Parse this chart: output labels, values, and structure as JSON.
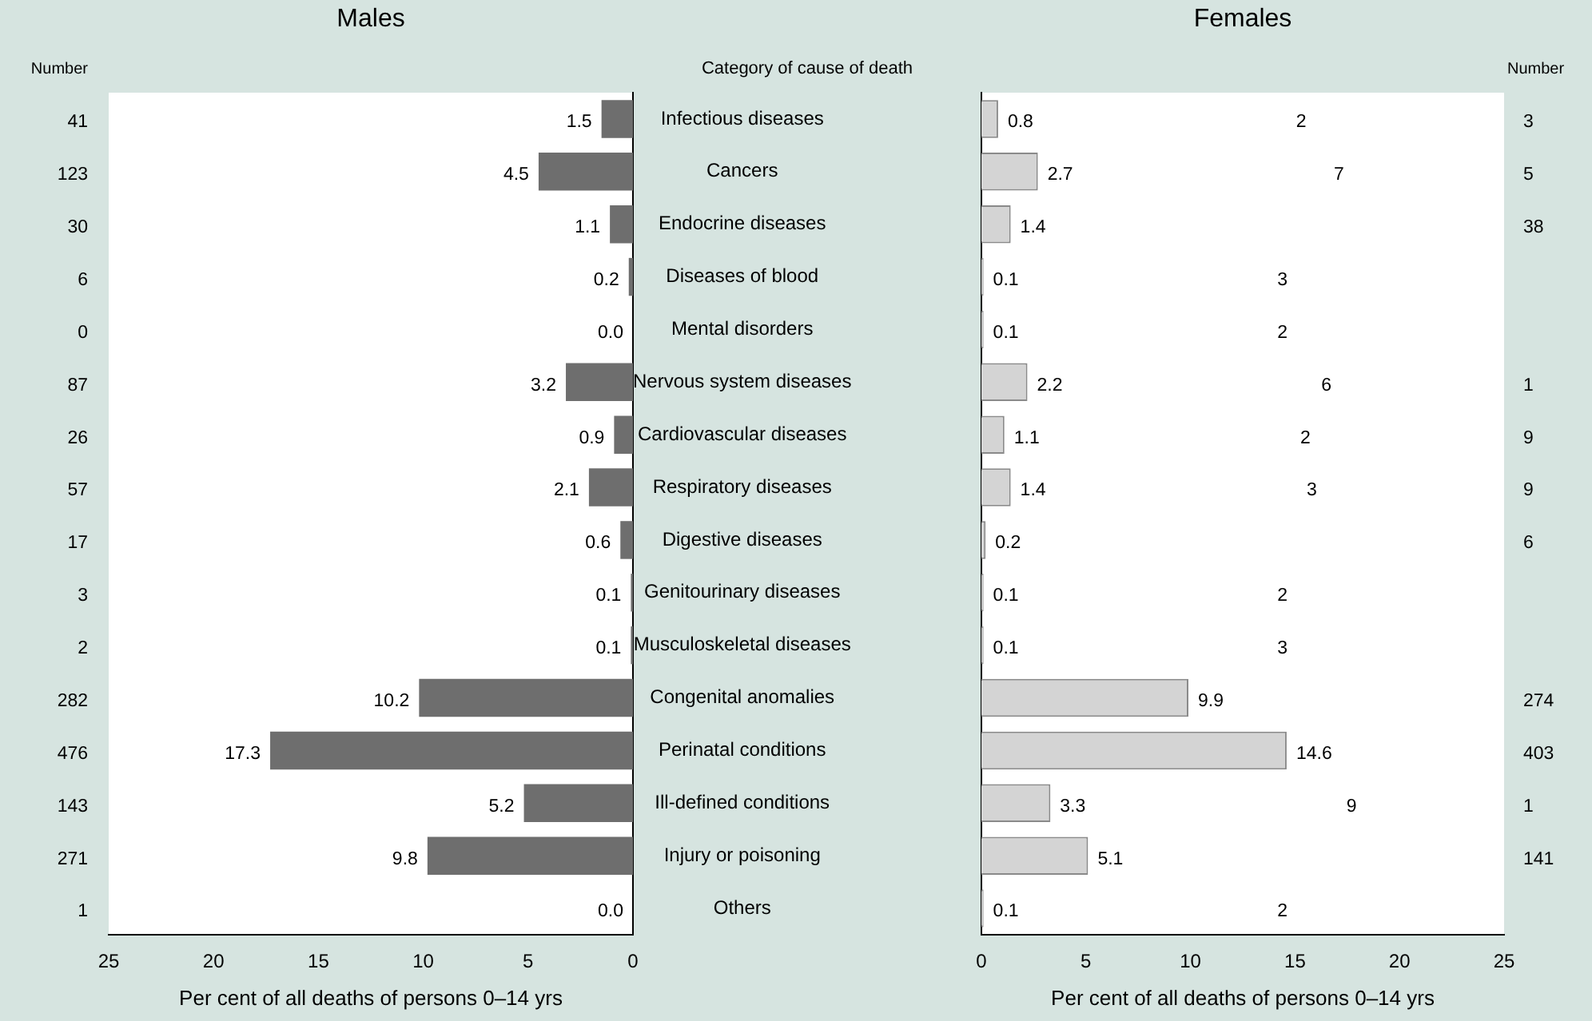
{
  "chart_data": [
    {
      "type": "bar",
      "orientation": "horizontal",
      "title": "Males",
      "xlabel": "Per cent of all deaths of persons 0–14 yrs",
      "categories": [
        "Infectious diseases",
        "Cancers",
        "Endocrine diseases",
        "Diseases of blood",
        "Mental disorders",
        "Nervous system diseases",
        "Cardiovascular diseases",
        "Respiratory diseases",
        "Digestive diseases",
        "Genitourinary diseases",
        "Musculoskeletal diseases",
        "Congenital anomalies",
        "Perinatal conditions",
        "Ill-defined conditions",
        "Injury or poisoning",
        "Others"
      ],
      "values": [
        1.5,
        4.5,
        1.1,
        0.2,
        0.0,
        3.2,
        0.9,
        2.1,
        0.6,
        0.1,
        0.1,
        10.2,
        17.3,
        5.2,
        9.8,
        0.0
      ],
      "value_labels": [
        "1.5",
        "4.5",
        "1.1",
        "0.2",
        "0.0",
        "3.2",
        "0.9",
        "2.1",
        "0.6",
        "0.1",
        "0.1",
        "10.2",
        "17.3",
        "5.2",
        "9.8",
        "0.0"
      ],
      "color": "#6e6e6e",
      "xlim": [
        25,
        0
      ],
      "xticks": [
        25,
        20,
        15,
        10,
        5,
        0
      ],
      "grid": false,
      "annotations": [
        "Number",
        "Category of cause of death",
        "41",
        "123",
        "30",
        "6",
        "0",
        "87",
        "26",
        "57",
        "17",
        "3",
        "2",
        "282",
        "476",
        "143",
        "271",
        "1"
      ]
    },
    {
      "type": "bar",
      "orientation": "horizontal",
      "title": "Females",
      "xlabel": "Per cent of all deaths of persons 0–14 yrs",
      "tick_labels": "x",
      "categories": [
        null,
        null,
        null,
        null,
        null,
        null,
        null,
        null,
        null,
        null,
        null,
        null,
        null,
        null,
        null,
        null
      ],
      "values": [
        0.8,
        2.7,
        1.4,
        0.1,
        0.1,
        2.2,
        1.1,
        1.4,
        0.2,
        0.1,
        0.1,
        9.9,
        14.6,
        3.3,
        5.1,
        0.1
      ],
      "value_labels": [
        "0.8",
        "2.7",
        "1.4",
        "0.1",
        "0.1",
        "2.2",
        "1.1",
        "1.4",
        "0.2",
        "0.1",
        "0.1",
        "9.9",
        "14.6",
        "3.3",
        "5.1",
        "0.1"
      ],
      "color": "#d4d4d4",
      "xlim": [
        0,
        25
      ],
      "xticks": [
        0,
        5,
        10,
        15,
        20,
        25
      ],
      "grid": false,
      "annotations": [
        "Number",
        "2",
        "3",
        "7",
        "5",
        "38",
        "3",
        "2",
        "6",
        "1",
        "2",
        "9",
        "3",
        "9",
        "6",
        "2",
        "3",
        "274",
        "403",
        "9",
        "1",
        "141",
        "2"
      ]
    }
  ]
}
